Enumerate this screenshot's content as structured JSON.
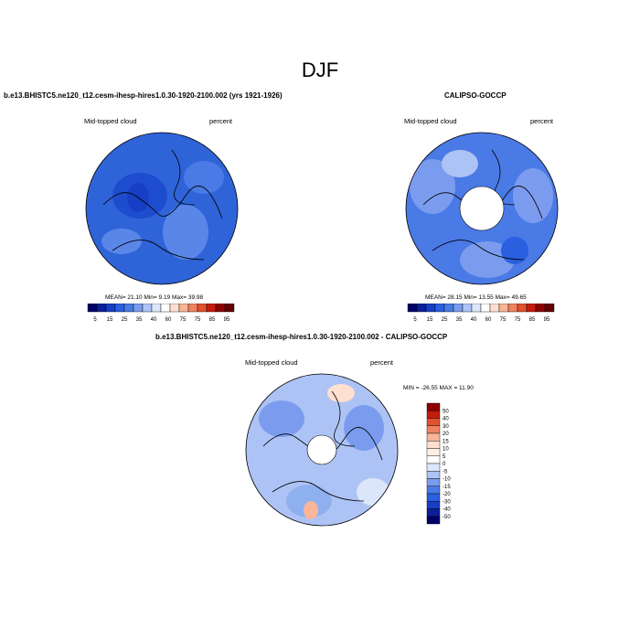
{
  "figure": {
    "season": "DJF"
  },
  "panels": [
    {
      "title": "b.e13.BHISTC5.ne120_t12.cesm-ihesp-hires1.0.30-1920-2100.002 (yrs 1921-1926)",
      "left_label": "Mid-topped cloud",
      "right_label": "percent",
      "stats": "MEAN=  21.10  Min=   9.19  Max=  39.98",
      "base_color": "#2f63d8"
    },
    {
      "title": "CALIPSO-GOCCP",
      "left_label": "Mid-topped cloud",
      "right_label": "percent",
      "stats": "MEAN=  28.15  Min=  13.55  Max=  49.65",
      "base_color": "#4a7ae6"
    },
    {
      "title": "b.e13.BHISTC5.ne120_t12.cesm-ihesp-hires1.0.30-1920-2100.002 - CALIPSO-GOCCP",
      "left_label": "Mid-topped cloud",
      "right_label": "percent",
      "stats": "MIN = -26.55 MAX =  11.90",
      "base_color": "#8fb0ef"
    }
  ],
  "colorbar_abs": {
    "tick_labels": [
      "5",
      "15",
      "25",
      "35",
      "40",
      "60",
      "75",
      "75",
      "85",
      "95"
    ],
    "colors": [
      "#000066",
      "#0a1f99",
      "#173fc6",
      "#2a5fe0",
      "#4a7ae6",
      "#7b9cee",
      "#aec3f5",
      "#dce6fb",
      "#ffffff",
      "#fde0cf",
      "#f8b598",
      "#ef8361",
      "#e0512f",
      "#c41d0c",
      "#8e0000",
      "#600000"
    ]
  },
  "colorbar_diff": {
    "tick_labels": [
      "50",
      "40",
      "30",
      "20",
      "15",
      "10",
      "5",
      "0",
      "-5",
      "-10",
      "-15",
      "-20",
      "-30",
      "-40",
      "-50"
    ],
    "colors": [
      "#8e0000",
      "#c41d0c",
      "#e0512f",
      "#ef8361",
      "#f8b598",
      "#fde0cf",
      "#ffeee5",
      "#ffffff",
      "#dce6fb",
      "#aec3f5",
      "#7b9cee",
      "#4a7ae6",
      "#2a5fe0",
      "#173fc6",
      "#0a1f99",
      "#000066"
    ]
  }
}
